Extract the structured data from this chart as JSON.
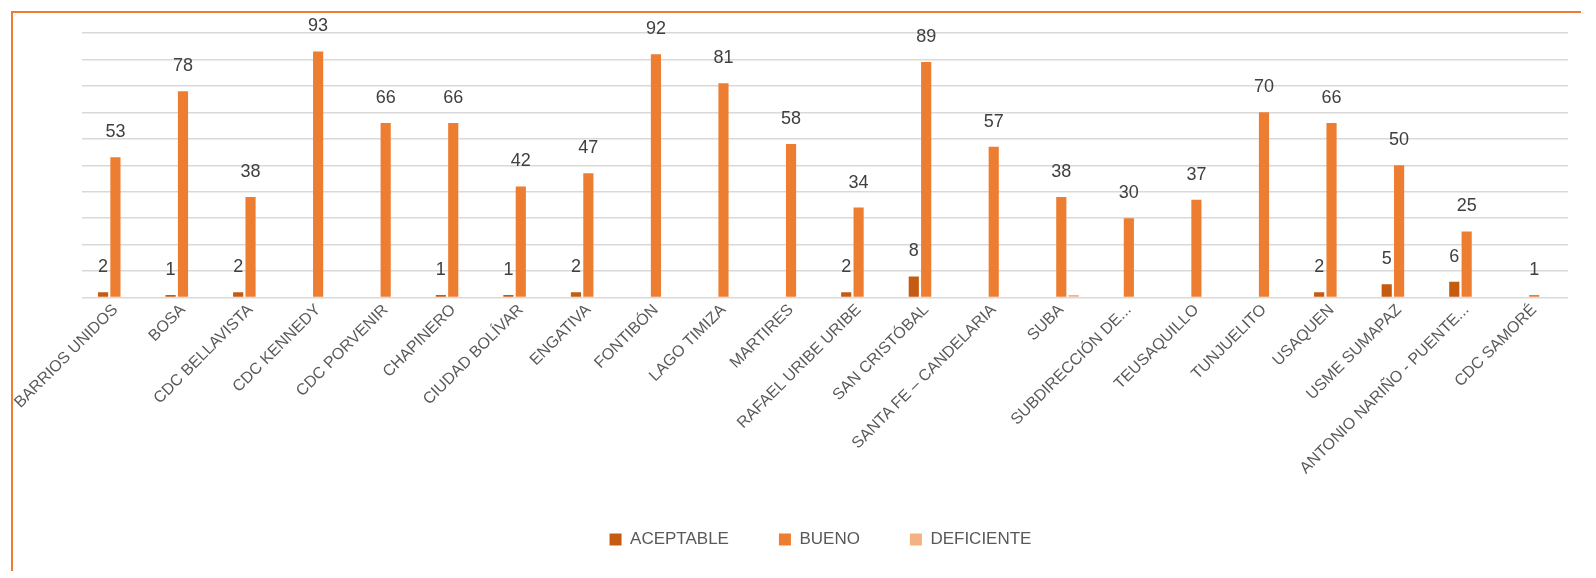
{
  "chart_data": {
    "type": "bar",
    "categories": [
      "BARRIOS UNIDOS",
      "BOSA",
      "CDC BELLAVISTA",
      "CDC KENNEDY",
      "CDC PORVENIR",
      "CHAPINERO",
      "CIUDAD BOLÍVAR",
      "ENGATIVA",
      "FONTIBÓN",
      "LAGO TIMIZA",
      "MARTIRES",
      "RAFAEL URIBE URIBE",
      "SAN CRISTÓBAL",
      "SANTA FE – CANDELARIA",
      "SUBA",
      "SUBDIRECCIÓN DE...",
      "TEUSAQUILLO",
      "TUNJUELITO",
      "USAQUEN",
      "USME SUMAPAZ",
      "ANTONIO NARIÑO - PUENTE...",
      "CDC SAMORÉ"
    ],
    "series": [
      {
        "name": "ACEPTABLE",
        "color": "#c55a11",
        "values": [
          2,
          1,
          2,
          null,
          null,
          1,
          1,
          2,
          null,
          null,
          null,
          2,
          8,
          null,
          null,
          null,
          null,
          null,
          2,
          5,
          6,
          null
        ],
        "value_labels": [
          "2",
          "1",
          "2",
          null,
          null,
          "1",
          "1",
          "2",
          null,
          null,
          null,
          "2",
          "8",
          null,
          null,
          null,
          null,
          null,
          "2",
          "5",
          "6",
          null
        ]
      },
      {
        "name": "BUENO",
        "color": "#ed7d31",
        "values": [
          53,
          78,
          38,
          93,
          66,
          66,
          42,
          47,
          92,
          81,
          58,
          34,
          89,
          57,
          38,
          30,
          37,
          70,
          66,
          50,
          25,
          1
        ],
        "value_labels": [
          "53",
          "78",
          "38",
          "93",
          "66",
          "66",
          "42",
          "47",
          "92",
          "81",
          "58",
          "34",
          "89",
          "57",
          "38",
          "30",
          "37",
          "70",
          "66",
          "50",
          "25",
          "1"
        ]
      },
      {
        "name": "DEFICIENTE",
        "color": "#f4b183",
        "values": [
          null,
          null,
          null,
          null,
          null,
          null,
          null,
          null,
          null,
          null,
          null,
          null,
          null,
          null,
          1,
          null,
          null,
          null,
          null,
          null,
          null,
          null
        ]
      }
    ],
    "ylim": [
      0,
      100
    ],
    "yticks": [
      {
        "value": 0,
        "label": null
      },
      {
        "value": 10,
        "label": null
      },
      {
        "value": 20,
        "label": null
      },
      {
        "value": 30,
        "label": null
      },
      {
        "value": 40,
        "label": null
      },
      {
        "value": 50,
        "label": null
      },
      {
        "value": 60,
        "label": null
      },
      {
        "value": 70,
        "label": null
      },
      {
        "value": 80,
        "label": null
      },
      {
        "value": 90,
        "label": null
      },
      {
        "value": 100,
        "label": null
      }
    ],
    "tick_labels": "x",
    "grid": "y",
    "legend": "bottom"
  }
}
